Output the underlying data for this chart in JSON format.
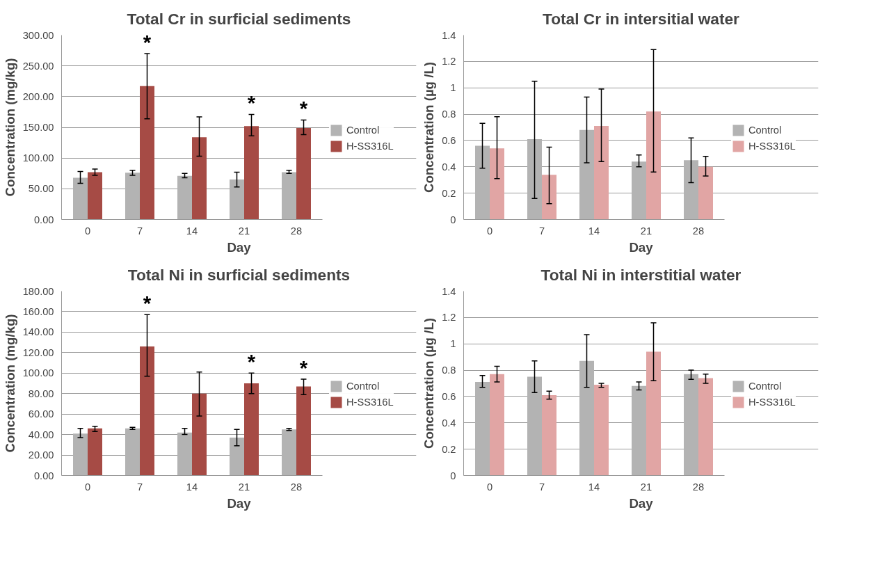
{
  "chart_data": [
    {
      "type": "bar",
      "title": "Total Cr in surficial sediments",
      "xlabel": "Day",
      "ylabel": "Concentration (mg/kg)",
      "categories": [
        "0",
        "7",
        "14",
        "21",
        "28"
      ],
      "series": [
        {
          "name": "Control",
          "color": "#b3b3b3",
          "values": [
            68,
            76,
            71,
            65,
            77
          ],
          "errors": [
            [
              59,
              78
            ],
            [
              72,
              80
            ],
            [
              68,
              75
            ],
            [
              53,
              77
            ],
            [
              75,
              80
            ]
          ]
        },
        {
          "name": "H-SS316L",
          "color": "#a64b45",
          "values": [
            77,
            217,
            134,
            152,
            149
          ],
          "errors": [
            [
              72,
              82
            ],
            [
              164,
              270
            ],
            [
              103,
              167
            ],
            [
              136,
              171
            ],
            [
              138,
              162
            ]
          ]
        }
      ],
      "ylim": [
        0,
        300
      ],
      "yticks": [
        {
          "value": 0,
          "label": "0.00"
        },
        {
          "value": 50,
          "label": "50.00"
        },
        {
          "value": 100,
          "label": "100.00"
        },
        {
          "value": 150,
          "label": "150.00"
        },
        {
          "value": 200,
          "label": "200.00"
        },
        {
          "value": 250,
          "label": "250.00"
        },
        {
          "value": 300,
          "label": "300.00"
        }
      ],
      "annotations": [
        {
          "text": "*",
          "x": "7",
          "y": 217
        },
        {
          "text": "*",
          "x": "21",
          "y": 152
        },
        {
          "text": "*",
          "x": "28",
          "y": 149
        }
      ],
      "grid": "y",
      "legend": "right"
    },
    {
      "type": "bar",
      "title": "Total Cr in intersitial water",
      "xlabel": "Day",
      "ylabel": "Concentration (µg /L)",
      "categories": [
        "0",
        "7",
        "14",
        "21",
        "28"
      ],
      "series": [
        {
          "name": "Control",
          "color": "#b3b3b3",
          "values": [
            0.56,
            0.61,
            0.68,
            0.44,
            0.45
          ],
          "errors": [
            [
              0.39,
              0.73
            ],
            [
              0.16,
              1.05
            ],
            [
              0.43,
              0.93
            ],
            [
              0.4,
              0.49
            ],
            [
              0.28,
              0.62
            ]
          ]
        },
        {
          "name": "H-SS316L",
          "color": "#e1a5a4",
          "values": [
            0.54,
            0.34,
            0.71,
            0.82,
            0.4
          ],
          "errors": [
            [
              0.31,
              0.78
            ],
            [
              0.12,
              0.55
            ],
            [
              0.44,
              0.99
            ],
            [
              0.36,
              1.29
            ],
            [
              0.33,
              0.48
            ]
          ]
        }
      ],
      "ylim": [
        0,
        1.4
      ],
      "yticks": [
        0,
        0.2,
        0.4,
        0.6,
        0.8,
        {
          "value": 1,
          "label": "1"
        },
        1.2,
        1.4
      ],
      "grid": "y",
      "legend": "right"
    },
    {
      "type": "bar",
      "title": "Total Ni in surficial sediments",
      "xlabel": "Day",
      "ylabel": "Concentration (mg/kg)",
      "categories": [
        "0",
        "7",
        "14",
        "21",
        "28"
      ],
      "series": [
        {
          "name": "Control",
          "color": "#b3b3b3",
          "values": [
            41,
            46,
            42,
            37,
            45
          ],
          "errors": [
            [
              37,
              46
            ],
            [
              45,
              47
            ],
            [
              40,
              46
            ],
            [
              29,
              45
            ],
            [
              44,
              46
            ]
          ]
        },
        {
          "name": "H-SS316L",
          "color": "#a64b45",
          "values": [
            46,
            126,
            80,
            90,
            87
          ],
          "errors": [
            [
              43,
              48
            ],
            [
              97,
              157
            ],
            [
              58,
              101
            ],
            [
              80,
              100
            ],
            [
              79,
              94
            ]
          ]
        }
      ],
      "ylim": [
        0,
        180
      ],
      "yticks": [
        {
          "value": 0,
          "label": "0.00"
        },
        {
          "value": 20,
          "label": "20.00"
        },
        {
          "value": 40,
          "label": "40.00"
        },
        {
          "value": 60,
          "label": "60.00"
        },
        {
          "value": 80,
          "label": "80.00"
        },
        {
          "value": 100,
          "label": "100.00"
        },
        {
          "value": 120,
          "label": "120.00"
        },
        {
          "value": 140,
          "label": "140.00"
        },
        {
          "value": 160,
          "label": "160.00"
        },
        {
          "value": 180,
          "label": "180.00"
        }
      ],
      "annotations": [
        {
          "text": "*",
          "x": "7",
          "y": 126
        },
        {
          "text": "*",
          "x": "21",
          "y": 90
        },
        {
          "text": "*",
          "x": "28",
          "y": 87
        }
      ],
      "grid": "y",
      "legend": "right"
    },
    {
      "type": "bar",
      "title": "Total Ni in interstitial water",
      "xlabel": "Day",
      "ylabel": "Concentration (µg /L)",
      "categories": [
        "0",
        "7",
        "14",
        "21",
        "28"
      ],
      "series": [
        {
          "name": "Control",
          "color": "#b3b3b3",
          "values": [
            0.71,
            0.75,
            0.87,
            0.68,
            0.77
          ],
          "errors": [
            [
              0.67,
              0.76
            ],
            [
              0.63,
              0.87
            ],
            [
              0.67,
              1.07
            ],
            [
              0.65,
              0.71
            ],
            [
              0.73,
              0.8
            ]
          ]
        },
        {
          "name": "H-SS316L",
          "color": "#e1a5a4",
          "values": [
            0.77,
            0.61,
            0.69,
            0.94,
            0.74
          ],
          "errors": [
            [
              0.71,
              0.83
            ],
            [
              0.58,
              0.64
            ],
            [
              0.67,
              0.7
            ],
            [
              0.72,
              1.16
            ],
            [
              0.7,
              0.77
            ]
          ]
        }
      ],
      "ylim": [
        0,
        1.4
      ],
      "yticks": [
        0,
        0.2,
        0.4,
        0.6,
        0.8,
        {
          "value": 1,
          "label": "1"
        },
        1.2,
        1.4
      ],
      "grid": "y",
      "legend": "right"
    }
  ]
}
